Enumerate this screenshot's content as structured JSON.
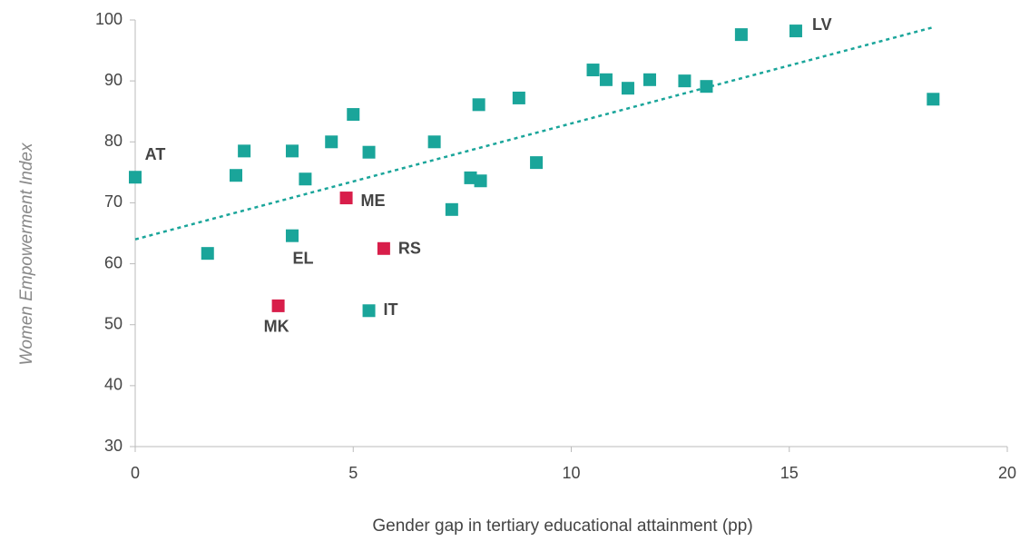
{
  "chart_data": {
    "type": "scatter",
    "xlabel": "Gender gap in tertiary educational attainment (pp)",
    "ylabel": "Women Empowerment Index",
    "xlim": [
      0,
      20
    ],
    "xticks": [
      0,
      5,
      10,
      15,
      20
    ],
    "ylim": [
      30,
      100
    ],
    "yticks": [
      30,
      40,
      50,
      60,
      70,
      80,
      90,
      100
    ],
    "series": [
      {
        "color": "#1aa59a",
        "x": [
          0,
          1.66,
          2.31,
          2.5,
          3.6,
          3.6,
          3.9,
          4.5,
          5.0,
          5.36,
          5.36,
          6.86,
          7.26,
          7.69,
          7.92,
          7.88,
          8.8,
          9.2,
          10.5,
          10.8,
          11.3,
          11.8,
          12.6,
          13.1,
          13.9,
          15.15,
          18.3
        ],
        "values": [
          74.2,
          61.7,
          74.5,
          78.5,
          78.5,
          64.6,
          73.9,
          80.0,
          84.5,
          78.3,
          52.3,
          80.0,
          68.9,
          74.1,
          73.6,
          86.1,
          87.2,
          76.6,
          91.8,
          90.2,
          88.8,
          90.2,
          90.0,
          89.1,
          97.6,
          98.2,
          87.0
        ],
        "labels": [
          "AT",
          null,
          null,
          null,
          null,
          "EL",
          null,
          null,
          null,
          null,
          "IT",
          null,
          null,
          null,
          null,
          null,
          null,
          null,
          null,
          null,
          null,
          null,
          null,
          null,
          null,
          "LV",
          null
        ]
      },
      {
        "color": "#d81e4a",
        "x": [
          3.28,
          4.84,
          5.7
        ],
        "values": [
          53.1,
          70.8,
          62.5
        ],
        "labels": [
          "MK",
          "ME",
          "RS"
        ]
      }
    ],
    "trendline": {
      "color": "#1aa59a",
      "x": [
        0,
        18.3
      ],
      "values": [
        64.0,
        98.8
      ]
    }
  }
}
